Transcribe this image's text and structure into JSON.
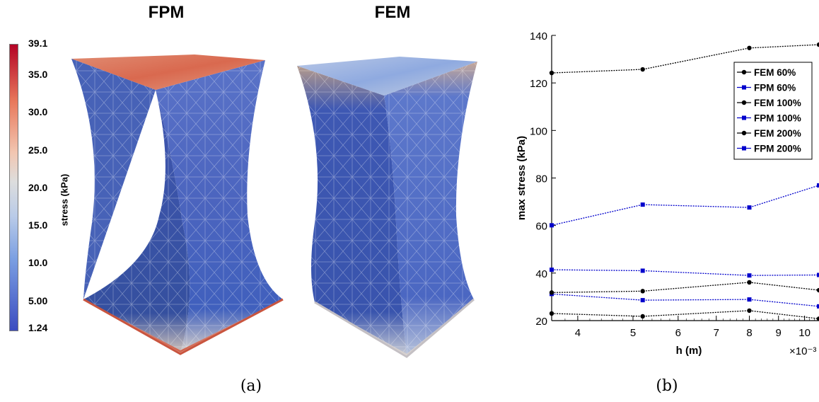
{
  "panel_a": {
    "title_left": "FPM",
    "title_right": "FEM",
    "caption": "(a)",
    "colorbar": {
      "label": "stress (kPa)",
      "ticks": [
        "39.1",
        "35.0",
        "30.0",
        "25.0",
        "20.0",
        "15.0",
        "10.0",
        "5.00",
        "1.24"
      ],
      "colors": {
        "high": "#b40426",
        "mid": "#dddddd",
        "low": "#3b4cc0"
      }
    }
  },
  "panel_b": {
    "caption": "(b)",
    "exponent_label": "×10⁻³"
  },
  "chart_data": {
    "type": "line",
    "xlabel": "h (m)",
    "ylabel": "max stress (kPa)",
    "xlim": [
      3.6,
      10.6
    ],
    "ylim": [
      20,
      140
    ],
    "x_scale": "log",
    "x_ticks": [
      4,
      5,
      6,
      7,
      8,
      9,
      10
    ],
    "y_ticks": [
      20,
      40,
      60,
      80,
      100,
      120,
      140
    ],
    "x_exponent": "×10⁻³",
    "grid": false,
    "legend_position": "top-right",
    "x": [
      3.6,
      5.2,
      8.0,
      10.6
    ],
    "series": [
      {
        "name": "FEM 60%",
        "color": "#000000",
        "marker": "circle",
        "values": [
          23.0,
          21.8,
          24.2,
          20.8
        ]
      },
      {
        "name": "FPM 60%",
        "color": "#0000cc",
        "marker": "square",
        "values": [
          31.2,
          28.6,
          28.9,
          26.0
        ]
      },
      {
        "name": "FEM 100%",
        "color": "#000000",
        "marker": "circle",
        "values": [
          31.8,
          32.4,
          36.1,
          32.8
        ]
      },
      {
        "name": "FPM 100%",
        "color": "#0000cc",
        "marker": "square",
        "values": [
          41.4,
          41.0,
          39.0,
          39.2
        ]
      },
      {
        "name": "FEM 200%",
        "color": "#000000",
        "marker": "circle",
        "values": [
          124.2,
          125.7,
          134.7,
          136.1
        ]
      },
      {
        "name": "FPM 200%",
        "color": "#0000cc",
        "marker": "square",
        "values": [
          60.1,
          68.8,
          67.6,
          76.9
        ]
      }
    ]
  }
}
